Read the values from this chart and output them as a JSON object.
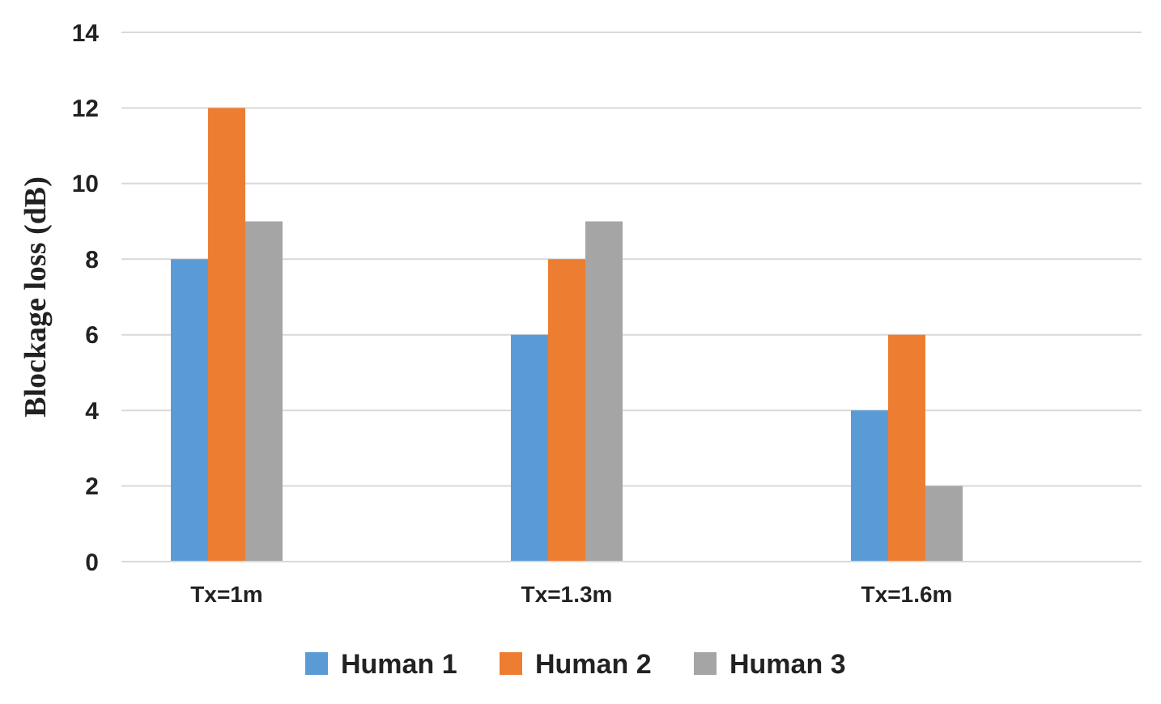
{
  "chart_data": {
    "type": "bar",
    "ylabel": "Blockage loss (dB)",
    "categories": [
      "Tx=1m",
      "Tx=1.3m",
      "Tx=1.6m"
    ],
    "series": [
      {
        "name": "Human 1",
        "color": "#5b9bd5",
        "values": [
          8,
          6,
          4
        ]
      },
      {
        "name": "Human 2",
        "color": "#ed7d31",
        "values": [
          12,
          8,
          6
        ]
      },
      {
        "name": "Human 3",
        "color": "#a5a5a5",
        "values": [
          9,
          9,
          2
        ]
      }
    ],
    "ylim": [
      0,
      14
    ],
    "yticks": [
      0,
      2,
      4,
      6,
      8,
      10,
      12,
      14
    ],
    "grid": "y",
    "legend": "bottom"
  }
}
